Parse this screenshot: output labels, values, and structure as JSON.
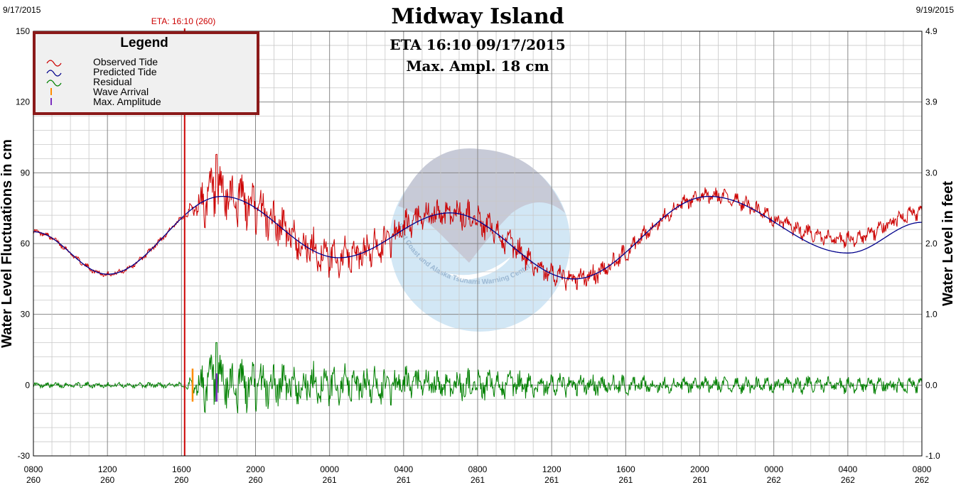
{
  "header": {
    "title": "Midway Island",
    "date_left": "9/17/2015",
    "date_right": "9/19/2015",
    "eta_marker": "ETA: 16:10 (260)"
  },
  "info": {
    "eta": "ETA 16:10  09/17/2015",
    "max_amplitude": "Max. Ampl.  18 cm"
  },
  "legend": {
    "title": "Legend",
    "items": [
      "Observed Tide",
      "Predicted Tide",
      "Residual",
      "Wave Arrival",
      "Max. Amplitude"
    ],
    "colors": [
      "#cc0000",
      "#00008b",
      "#008000",
      "#ff8c00",
      "#7b2fbf"
    ]
  },
  "watermark": {
    "text": "West Coast and Alaska Tsunami Warning Center"
  },
  "chart_data": {
    "type": "line",
    "ylabel": "Water Level Fluctuations in cm",
    "ylabel_right": "Water Level in feet",
    "ylim": [
      -30,
      150
    ],
    "yticks": [
      "-30",
      "0",
      "30",
      "60",
      "90",
      "120",
      "150"
    ],
    "yticks_right": [
      "-1.0",
      "0.0",
      "1.0",
      "2.0",
      "3.0",
      "3.9",
      "4.9"
    ],
    "x_range_hours": [
      0,
      48
    ],
    "xticks": [
      {
        "time": "0800",
        "day": "260",
        "color": "#000000"
      },
      {
        "time": "1200",
        "day": "260",
        "color": "#00008b"
      },
      {
        "time": "1600",
        "day": "260",
        "color": "#000000"
      },
      {
        "time": "2000",
        "day": "260",
        "color": "#000000"
      },
      {
        "time": "0000",
        "day": "261",
        "color": "#cc0000"
      },
      {
        "time": "0400",
        "day": "261",
        "color": "#000000"
      },
      {
        "time": "0800",
        "day": "261",
        "color": "#000000"
      },
      {
        "time": "1200",
        "day": "261",
        "color": "#00008b"
      },
      {
        "time": "1600",
        "day": "261",
        "color": "#000000"
      },
      {
        "time": "2000",
        "day": "261",
        "color": "#000000"
      },
      {
        "time": "0000",
        "day": "262",
        "color": "#cc0000"
      },
      {
        "time": "0400",
        "day": "262",
        "color": "#000000"
      },
      {
        "time": "0800",
        "day": "262",
        "color": "#000000"
      }
    ],
    "eta_hours": 8.17,
    "wave_arrival_hours": 8.6,
    "max_amplitude_hours": 9.9,
    "max_amplitude_cm": 18,
    "predicted_tide": {
      "name": "Predicted Tide",
      "hours": [
        0,
        4,
        10.2,
        16.5,
        22.5,
        29.2,
        36.5,
        44,
        48
      ],
      "cm": [
        65,
        47,
        80,
        54,
        73,
        45,
        80,
        56,
        69
      ]
    },
    "observed_tide": {
      "name": "Observed Tide",
      "base_offset_cm": [
        [
          0,
          0
        ],
        [
          36,
          0
        ],
        [
          40,
          1
        ],
        [
          42,
          4
        ],
        [
          44,
          6
        ],
        [
          48,
          4
        ]
      ]
    },
    "residual": {
      "name": "Residual",
      "envelope_cm": [
        [
          0,
          1
        ],
        [
          8,
          1
        ],
        [
          8.6,
          3
        ],
        [
          9.5,
          12
        ],
        [
          11.5,
          10
        ],
        [
          14,
          8
        ],
        [
          18,
          7
        ],
        [
          22,
          6
        ],
        [
          26,
          5
        ],
        [
          30,
          4
        ],
        [
          34,
          3
        ],
        [
          40,
          3
        ],
        [
          48,
          3
        ]
      ]
    }
  }
}
